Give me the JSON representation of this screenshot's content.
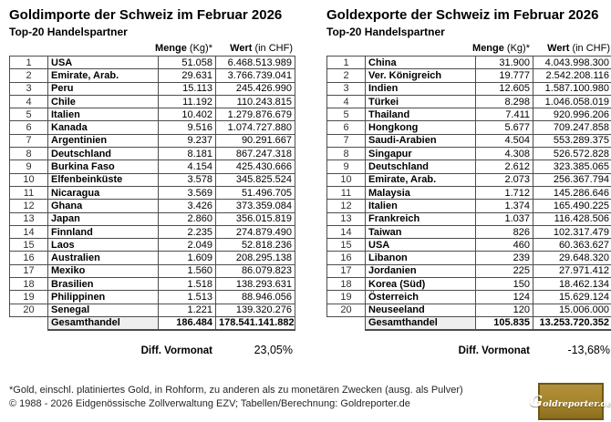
{
  "columns": {
    "menge_bold": "Menge",
    "menge_rest": " (Kg)*",
    "wert_bold": "Wert",
    "wert_rest": " (in CHF)"
  },
  "tables": [
    {
      "title": "Goldimporte der Schweiz im Februar 2026",
      "subtitle": "Top-20 Handelspartner",
      "rows": [
        [
          "1",
          "USA",
          "51.058",
          "6.468.513.989"
        ],
        [
          "2",
          "Emirate, Arab.",
          "29.631",
          "3.766.739.041"
        ],
        [
          "3",
          "Peru",
          "15.113",
          "245.426.990"
        ],
        [
          "4",
          "Chile",
          "11.192",
          "110.243.815"
        ],
        [
          "5",
          "Italien",
          "10.402",
          "1.279.876.679"
        ],
        [
          "6",
          "Kanada",
          "9.516",
          "1.074.727.880"
        ],
        [
          "7",
          "Argentinien",
          "9.237",
          "90.291.667"
        ],
        [
          "8",
          "Deutschland",
          "8.181",
          "867.247.318"
        ],
        [
          "9",
          "Burkina Faso",
          "4.154",
          "425.430.666"
        ],
        [
          "10",
          "Elfenbeinküste",
          "3.578",
          "345.825.524"
        ],
        [
          "11",
          "Nicaragua",
          "3.569",
          "51.496.705"
        ],
        [
          "12",
          "Ghana",
          "3.426",
          "373.359.084"
        ],
        [
          "13",
          "Japan",
          "2.860",
          "356.015.819"
        ],
        [
          "14",
          "Finnland",
          "2.235",
          "274.879.490"
        ],
        [
          "15",
          "Laos",
          "2.049",
          "52.818.236"
        ],
        [
          "16",
          "Australien",
          "1.609",
          "208.295.138"
        ],
        [
          "17",
          "Mexiko",
          "1.560",
          "86.079.823"
        ],
        [
          "18",
          "Brasilien",
          "1.518",
          "138.293.631"
        ],
        [
          "19",
          "Philippinen",
          "1.513",
          "88.946.056"
        ],
        [
          "20",
          "Senegal",
          "1.221",
          "139.320.276"
        ]
      ],
      "total": {
        "label": "Gesamthandel",
        "menge": "186.484",
        "wert": "178.541.141.882"
      },
      "diff": {
        "label": "Diff. Vormonat",
        "value": "23,05%"
      }
    },
    {
      "title": "Goldexporte der Schweiz im Februar 2026",
      "subtitle": "Top-20 Handelspartner",
      "rows": [
        [
          "1",
          "China",
          "31.900",
          "4.043.998.300"
        ],
        [
          "2",
          "Ver. Königreich",
          "19.777",
          "2.542.208.116"
        ],
        [
          "3",
          "Indien",
          "12.605",
          "1.587.100.980"
        ],
        [
          "4",
          "Türkei",
          "8.298",
          "1.046.058.019"
        ],
        [
          "5",
          "Thailand",
          "7.411",
          "920.996.206"
        ],
        [
          "6",
          "Hongkong",
          "5.677",
          "709.247.858"
        ],
        [
          "7",
          "Saudi-Arabien",
          "4.504",
          "553.289.375"
        ],
        [
          "8",
          "Singapur",
          "4.308",
          "526.572.828"
        ],
        [
          "9",
          "Deutschland",
          "2.612",
          "323.385.065"
        ],
        [
          "10",
          "Emirate, Arab.",
          "2.073",
          "256.367.794"
        ],
        [
          "11",
          "Malaysia",
          "1.712",
          "145.286.646"
        ],
        [
          "12",
          "Italien",
          "1.374",
          "165.490.225"
        ],
        [
          "13",
          "Frankreich",
          "1.037",
          "116.428.506"
        ],
        [
          "14",
          "Taiwan",
          "826",
          "102.317.479"
        ],
        [
          "15",
          "USA",
          "460",
          "60.363.627"
        ],
        [
          "16",
          "Libanon",
          "239",
          "29.648.320"
        ],
        [
          "17",
          "Jordanien",
          "225",
          "27.971.412"
        ],
        [
          "18",
          "Korea (Süd)",
          "150",
          "18.462.134"
        ],
        [
          "19",
          "Österreich",
          "124",
          "15.629.124"
        ],
        [
          "20",
          "Neuseeland",
          "120",
          "15.006.000"
        ]
      ],
      "total": {
        "label": "Gesamthandel",
        "menge": "105.835",
        "wert": "13.253.720.352"
      },
      "diff": {
        "label": "Diff. Vormonat",
        "value": "-13,68%"
      }
    }
  ],
  "footer": {
    "footnote": "*Gold, einschl. platiniertes Gold, in Rohform, zu anderen als zu monetären Zwecken (ausg. als Pulver)",
    "copyright": "© 1988 - 2026 Eidgenössische Zollverwaltung EZV; Tabellen/Berechnung: Goldreporter.de"
  },
  "logo": {
    "text": "Goldreporter.de"
  },
  "colors": {
    "table_border": "#4d4d4d",
    "total_cell_bg": "#efefef",
    "logo_gold": "#a5832a",
    "logo_border": "#6e5715"
  }
}
